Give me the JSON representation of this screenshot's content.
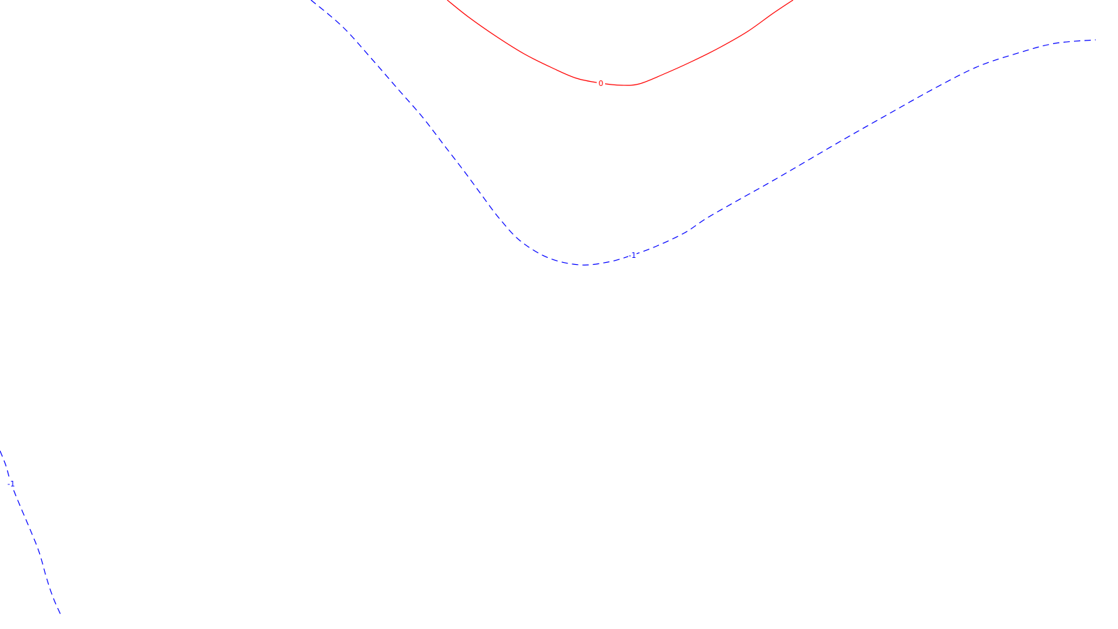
{
  "chart_data": {
    "type": "contour",
    "title": "",
    "xlabel": "",
    "ylabel": "",
    "grid": false,
    "legend": "none",
    "levels": [
      {
        "level_label": "0",
        "color": "#ff0000",
        "line_style": "solid",
        "segments": [
          {
            "points": [
              [
                640,
                0
              ],
              [
                670,
                24
              ],
              [
                710,
                52
              ],
              [
                750,
                77
              ],
              [
                790,
                97
              ],
              [
                825,
                112
              ],
              [
                860,
                119
              ],
              [
                890,
                122
              ],
              [
                915,
                120
              ],
              [
                950,
                106
              ],
              [
                990,
                88
              ],
              [
                1030,
                68
              ],
              [
                1070,
                45
              ],
              [
                1105,
                20
              ],
              [
                1135,
                0
              ]
            ],
            "label_at": 6
          }
        ]
      },
      {
        "level_label": "-1",
        "color": "#0000ff",
        "line_style": "dashed",
        "segments": [
          {
            "points": [
              [
                445,
                0
              ],
              [
                490,
                38
              ],
              [
                530,
                82
              ],
              [
                570,
                128
              ],
              [
                605,
                168
              ],
              [
                635,
                207
              ],
              [
                665,
                246
              ],
              [
                690,
                280
              ],
              [
                715,
                313
              ],
              [
                745,
                345
              ],
              [
                785,
                369
              ],
              [
                830,
                379
              ],
              [
                870,
                375
              ],
              [
                905,
                365
              ],
              [
                940,
                352
              ],
              [
                980,
                333
              ],
              [
                1010,
                313
              ],
              [
                1050,
                290
              ],
              [
                1100,
                262
              ],
              [
                1150,
                233
              ],
              [
                1210,
                198
              ],
              [
                1270,
                164
              ],
              [
                1340,
                125
              ],
              [
                1400,
                95
              ],
              [
                1460,
                75
              ],
              [
                1510,
                62
              ],
              [
                1568,
                57
              ]
            ],
            "label_at": 13
          },
          {
            "points": [
              [
                0,
                645
              ],
              [
                8,
                665
              ],
              [
                16,
                692
              ],
              [
                28,
                722
              ],
              [
                42,
                755
              ],
              [
                56,
                790
              ],
              [
                66,
                825
              ],
              [
                76,
                855
              ],
              [
                88,
                882
              ]
            ],
            "label_at": 2
          }
        ]
      }
    ]
  }
}
